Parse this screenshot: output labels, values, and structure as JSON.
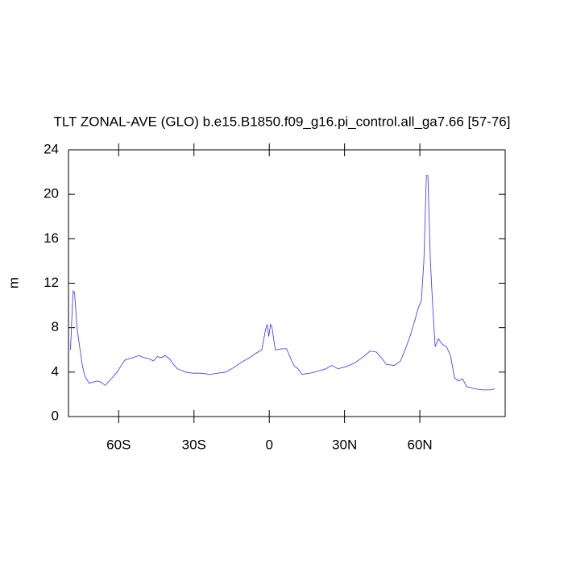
{
  "chart_data": {
    "type": "line",
    "title": "TLT ZONAL-AVE (GLO) b.e15.B1850.f09_g16.pi_control.all_ga7.66 [57-76]",
    "ylabel": "m",
    "xlim": [
      -80,
      94
    ],
    "ylim": [
      0,
      24
    ],
    "xticks": [
      {
        "value": -60,
        "label": "60S"
      },
      {
        "value": -30,
        "label": "30S"
      },
      0,
      {
        "value": 30,
        "label": "30N"
      },
      {
        "value": 60,
        "label": "60N"
      }
    ],
    "yticks": [
      0,
      4,
      8,
      12,
      16,
      20,
      24
    ],
    "series": [
      {
        "color": "#3030ff",
        "x": [
          -79.2,
          -78.2,
          -77.6,
          -76.6,
          -75.7,
          -74.4,
          -73.4,
          -71.8,
          -70.2,
          -68.6,
          -67,
          -65.4,
          -63.8,
          -62.2,
          -60.6,
          -59,
          -57.4,
          -55.8,
          -54.2,
          -52,
          -50,
          -47.8,
          -46.2,
          -44.6,
          -43,
          -41.4,
          -39.8,
          -38.2,
          -36.6,
          -33.4,
          -30.2,
          -27,
          -23.8,
          -20.6,
          -17.4,
          -14.2,
          -11,
          -7.8,
          -5.3,
          -3,
          -1.4,
          -0.8,
          -0.2,
          0.5,
          1.1,
          2.4,
          5,
          6.9,
          8.2,
          9.8,
          11.4,
          13,
          16.2,
          19.4,
          22.6,
          24.8,
          27.4,
          30.6,
          33.8,
          37,
          40.2,
          42.7,
          45,
          46.6,
          49.8,
          52.3,
          54.6,
          56.2,
          57.8,
          59.4,
          60.6,
          61.6,
          62.6,
          63.2,
          64.2,
          65.1,
          66.1,
          67.4,
          69,
          70.6,
          72.2,
          73.8,
          75.4,
          77,
          78.6,
          81.8,
          85,
          88.2,
          89.8
        ],
        "values": [
          6,
          11.3,
          11.2,
          8,
          6.5,
          4.5,
          3.6,
          3.0,
          3.1,
          3.2,
          3.1,
          2.8,
          3.2,
          3.6,
          4.0,
          4.6,
          5.1,
          5.2,
          5.3,
          5.5,
          5.3,
          5.2,
          5.0,
          5.4,
          5.3,
          5.5,
          5.2,
          4.7,
          4.3,
          4.0,
          3.9,
          3.9,
          3.8,
          3.9,
          4.0,
          4.4,
          4.9,
          5.3,
          5.7,
          6.0,
          7.9,
          8.3,
          7.2,
          8.3,
          8.0,
          6.0,
          6.1,
          6.1,
          5.4,
          4.6,
          4.3,
          3.8,
          3.9,
          4.1,
          4.3,
          4.6,
          4.3,
          4.5,
          4.8,
          5.3,
          5.9,
          5.8,
          5.2,
          4.7,
          4.6,
          5.0,
          6.3,
          7.3,
          8.5,
          9.8,
          10.4,
          14,
          21.7,
          21.7,
          14,
          10,
          6.3,
          7,
          6.5,
          6.3,
          5.5,
          3.5,
          3.2,
          3.4,
          2.7,
          2.5,
          2.4,
          2.4,
          2.5
        ]
      }
    ]
  }
}
